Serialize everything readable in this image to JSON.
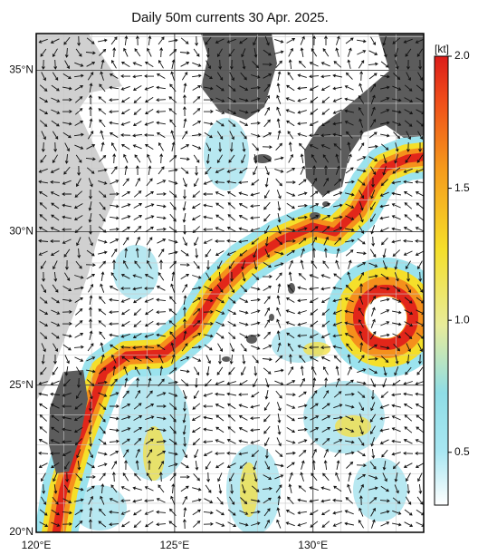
{
  "chart_data": {
    "type": "current-map",
    "title": "Daily 50m currents 30 Apr. 2025.",
    "xlim": [
      120,
      134
    ],
    "ylim": [
      20,
      36.1
    ],
    "xticks": [
      {
        "value": 120,
        "label": "120°E"
      },
      {
        "value": 125,
        "label": "125°E"
      },
      {
        "value": 130,
        "label": "130°E"
      }
    ],
    "yticks": [
      {
        "value": 20,
        "label": "20°N"
      },
      {
        "value": 25,
        "label": "25°N"
      },
      {
        "value": 30,
        "label": "30°N"
      },
      {
        "value": 35,
        "label": "35°N"
      }
    ],
    "grid": true,
    "colorbar": {
      "label": "[kt]",
      "lim": [
        0.3,
        2.0
      ],
      "ticks": [
        0.5,
        {
          "value": 1.0,
          "label": "1.0"
        },
        1.5,
        {
          "value": 2.0,
          "label": "2.0"
        }
      ]
    }
  }
}
